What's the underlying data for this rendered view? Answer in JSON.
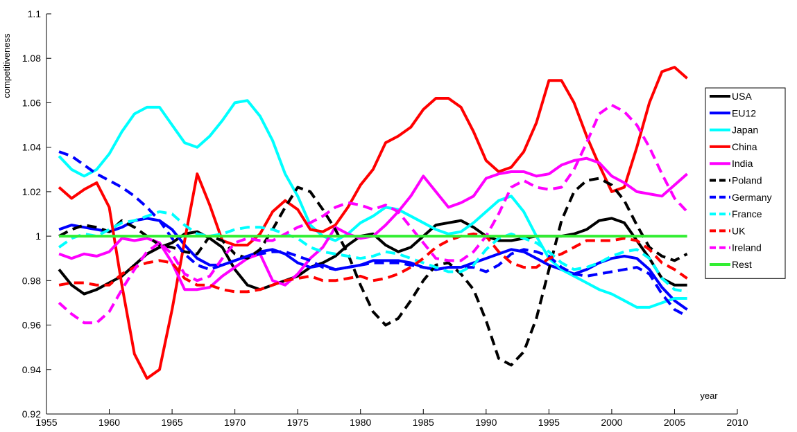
{
  "chart_data": {
    "type": "line",
    "title": "",
    "xlabel": "year",
    "ylabel": "competitiveness",
    "xlim": [
      1955,
      2010
    ],
    "ylim": [
      0.92,
      1.1
    ],
    "xticks": [
      "1955",
      "1960",
      "1965",
      "1970",
      "1975",
      "1980",
      "1985",
      "1990",
      "1995",
      "2000",
      "2005",
      "2010"
    ],
    "yticks": [
      "0.92",
      "0.94",
      "0.96",
      "0.98",
      "1",
      "1.02",
      "1.04",
      "1.06",
      "1.08",
      "1.1"
    ],
    "grid": false,
    "legend_position": "right",
    "x": [
      1956,
      1957,
      1958,
      1959,
      1960,
      1961,
      1962,
      1963,
      1964,
      1965,
      1966,
      1967,
      1968,
      1969,
      1970,
      1971,
      1972,
      1973,
      1974,
      1975,
      1976,
      1977,
      1978,
      1979,
      1980,
      1981,
      1982,
      1983,
      1984,
      1985,
      1986,
      1987,
      1988,
      1989,
      1990,
      1991,
      1992,
      1993,
      1994,
      1995,
      1996,
      1997,
      1998,
      1999,
      2000,
      2001,
      2002,
      2003,
      2004,
      2005,
      2006
    ],
    "series": [
      {
        "name": "USA",
        "color": "#000000",
        "dash": "solid",
        "values": [
          0.985,
          0.978,
          0.974,
          0.976,
          0.979,
          0.982,
          0.987,
          0.992,
          0.995,
          0.997,
          1.001,
          1.002,
          0.999,
          0.995,
          0.985,
          0.978,
          0.976,
          0.978,
          0.98,
          0.982,
          0.986,
          0.988,
          0.991,
          0.996,
          1.0,
          1.001,
          0.996,
          0.993,
          0.995,
          1.0,
          1.005,
          1.006,
          1.007,
          1.004,
          1.0,
          0.998,
          0.998,
          0.999,
          1.0,
          1.0,
          1.0,
          1.001,
          1.003,
          1.007,
          1.008,
          1.006,
          0.998,
          0.99,
          0.981,
          0.978,
          0.978
        ]
      },
      {
        "name": "EU12",
        "color": "#0000ff",
        "dash": "solid",
        "values": [
          1.003,
          1.005,
          1.004,
          1.003,
          1.002,
          1.004,
          1.007,
          1.008,
          1.007,
          1.003,
          0.996,
          0.99,
          0.987,
          0.987,
          0.989,
          0.991,
          0.993,
          0.994,
          0.992,
          0.988,
          0.986,
          0.987,
          0.985,
          0.986,
          0.987,
          0.989,
          0.989,
          0.989,
          0.988,
          0.986,
          0.985,
          0.986,
          0.986,
          0.988,
          0.99,
          0.992,
          0.994,
          0.993,
          0.99,
          0.987,
          0.985,
          0.983,
          0.985,
          0.988,
          0.99,
          0.991,
          0.99,
          0.985,
          0.977,
          0.971,
          0.967
        ]
      },
      {
        "name": "Japan",
        "color": "#00ffff",
        "dash": "solid",
        "values": [
          1.036,
          1.03,
          1.027,
          1.03,
          1.037,
          1.047,
          1.055,
          1.058,
          1.058,
          1.05,
          1.042,
          1.04,
          1.045,
          1.052,
          1.06,
          1.061,
          1.054,
          1.043,
          1.028,
          1.018,
          1.005,
          1.0,
          0.998,
          1.001,
          1.006,
          1.009,
          1.013,
          1.012,
          1.009,
          1.006,
          1.003,
          1.001,
          1.002,
          1.006,
          1.011,
          1.016,
          1.018,
          1.011,
          1.0,
          0.99,
          0.985,
          0.982,
          0.979,
          0.976,
          0.974,
          0.971,
          0.968,
          0.968,
          0.97,
          0.972,
          0.972
        ]
      },
      {
        "name": "China",
        "color": "#ff0000",
        "dash": "solid",
        "values": [
          1.022,
          1.017,
          1.021,
          1.024,
          1.013,
          0.978,
          0.947,
          0.936,
          0.94,
          0.967,
          0.998,
          1.028,
          1.014,
          0.998,
          0.996,
          0.996,
          1.001,
          1.011,
          1.016,
          1.012,
          1.003,
          1.002,
          1.005,
          1.013,
          1.023,
          1.03,
          1.042,
          1.045,
          1.049,
          1.057,
          1.062,
          1.062,
          1.058,
          1.047,
          1.034,
          1.029,
          1.031,
          1.038,
          1.051,
          1.07,
          1.07,
          1.06,
          1.045,
          1.032,
          1.02,
          1.022,
          1.04,
          1.06,
          1.074,
          1.076,
          1.071
        ]
      },
      {
        "name": "India",
        "color": "#ff00ff",
        "dash": "solid",
        "values": [
          0.992,
          0.99,
          0.992,
          0.991,
          0.993,
          0.999,
          0.998,
          0.999,
          0.997,
          0.988,
          0.976,
          0.976,
          0.977,
          0.982,
          0.986,
          0.99,
          0.992,
          0.98,
          0.978,
          0.983,
          0.99,
          0.995,
          1.004,
          1.001,
          0.999,
          1.0,
          1.005,
          1.011,
          1.018,
          1.027,
          1.02,
          1.013,
          1.015,
          1.018,
          1.026,
          1.028,
          1.029,
          1.029,
          1.027,
          1.028,
          1.032,
          1.034,
          1.035,
          1.033,
          1.027,
          1.024,
          1.02,
          1.019,
          1.018,
          1.023,
          1.028
        ]
      },
      {
        "name": "Poland",
        "color": "#000000",
        "dash": "dashed",
        "values": [
          1.0,
          1.003,
          1.005,
          1.004,
          1.002,
          1.007,
          1.004,
          1.0,
          0.996,
          0.995,
          0.993,
          0.992,
          1.0,
          0.998,
          0.992,
          0.99,
          0.994,
          1.003,
          1.013,
          1.022,
          1.02,
          1.012,
          1.003,
          0.992,
          0.978,
          0.966,
          0.96,
          0.963,
          0.971,
          0.98,
          0.987,
          0.988,
          0.983,
          0.976,
          0.962,
          0.945,
          0.942,
          0.948,
          0.963,
          0.985,
          1.007,
          1.02,
          1.025,
          1.026,
          1.023,
          1.016,
          1.005,
          0.995,
          0.991,
          0.989,
          0.992
        ]
      },
      {
        "name": "Germany",
        "color": "#0000ff",
        "dash": "dashed",
        "values": [
          1.038,
          1.036,
          1.032,
          1.028,
          1.025,
          1.022,
          1.018,
          1.013,
          1.007,
          0.999,
          0.992,
          0.987,
          0.985,
          0.987,
          0.989,
          0.991,
          0.992,
          0.993,
          0.993,
          0.991,
          0.989,
          0.986,
          0.985,
          0.986,
          0.987,
          0.988,
          0.988,
          0.988,
          0.987,
          0.986,
          0.985,
          0.986,
          0.986,
          0.986,
          0.984,
          0.987,
          0.992,
          0.994,
          0.993,
          0.991,
          0.986,
          0.983,
          0.982,
          0.983,
          0.984,
          0.985,
          0.986,
          0.983,
          0.974,
          0.967,
          0.964
        ]
      },
      {
        "name": "France",
        "color": "#00ffff",
        "dash": "dashed",
        "values": [
          0.995,
          0.999,
          1.001,
          1.0,
          1.003,
          1.006,
          1.007,
          1.009,
          1.011,
          1.01,
          1.005,
          1.001,
          1.0,
          1.001,
          1.003,
          1.004,
          1.004,
          1.003,
          1.001,
          0.999,
          0.995,
          0.993,
          0.992,
          0.991,
          0.99,
          0.991,
          0.993,
          0.992,
          0.99,
          0.988,
          0.986,
          0.984,
          0.984,
          0.987,
          0.994,
          0.999,
          1.001,
          0.999,
          0.997,
          0.993,
          0.988,
          0.985,
          0.986,
          0.988,
          0.991,
          0.993,
          0.994,
          0.99,
          0.981,
          0.976,
          0.975
        ]
      },
      {
        "name": "UK",
        "color": "#ff0000",
        "dash": "dashed",
        "values": [
          0.978,
          0.979,
          0.979,
          0.978,
          0.978,
          0.983,
          0.986,
          0.988,
          0.989,
          0.988,
          0.981,
          0.978,
          0.978,
          0.976,
          0.975,
          0.975,
          0.976,
          0.978,
          0.98,
          0.981,
          0.982,
          0.98,
          0.98,
          0.981,
          0.982,
          0.98,
          0.981,
          0.983,
          0.986,
          0.99,
          0.995,
          0.998,
          1.0,
          1.001,
          1.0,
          0.993,
          0.988,
          0.986,
          0.986,
          0.99,
          0.992,
          0.995,
          0.998,
          0.998,
          0.998,
          0.999,
          0.998,
          0.994,
          0.988,
          0.985,
          0.981
        ]
      },
      {
        "name": "Ireland",
        "color": "#ff00ff",
        "dash": "dashed",
        "values": [
          0.97,
          0.965,
          0.961,
          0.961,
          0.966,
          0.976,
          0.985,
          0.993,
          0.997,
          0.992,
          0.983,
          0.98,
          0.982,
          0.99,
          0.997,
          0.999,
          0.998,
          0.998,
          1.001,
          1.004,
          1.006,
          1.009,
          1.013,
          1.015,
          1.014,
          1.012,
          1.014,
          1.011,
          1.004,
          0.997,
          0.99,
          0.989,
          0.989,
          0.993,
          1.0,
          1.01,
          1.022,
          1.025,
          1.022,
          1.021,
          1.022,
          1.03,
          1.042,
          1.055,
          1.059,
          1.056,
          1.05,
          1.04,
          1.028,
          1.017,
          1.011
        ]
      },
      {
        "name": "Rest",
        "color": "#33ee33",
        "dash": "solid",
        "values": [
          1.0,
          1.0,
          1.0,
          1.0,
          1.0,
          1.0,
          1.0,
          1.0,
          1.0,
          1.0,
          1.0,
          1.0,
          1.0,
          1.0,
          1.0,
          1.0,
          1.0,
          1.0,
          1.0,
          1.0,
          1.0,
          1.0,
          1.0,
          1.0,
          1.0,
          1.0,
          1.0,
          1.0,
          1.0,
          1.0,
          1.0,
          1.0,
          1.0,
          1.0,
          1.0,
          1.0,
          1.0,
          1.0,
          1.0,
          1.0,
          1.0,
          1.0,
          1.0,
          1.0,
          1.0,
          1.0,
          1.0,
          1.0,
          1.0,
          1.0,
          1.0
        ]
      }
    ]
  }
}
